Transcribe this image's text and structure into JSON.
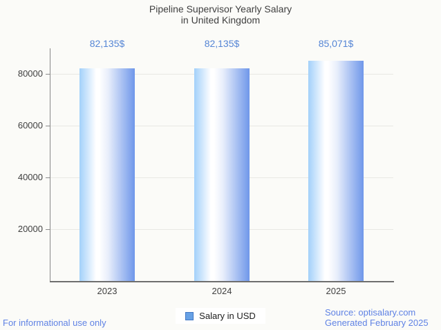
{
  "background": "#fbfbf8",
  "title": {
    "line1": "Pipeline Supervisor Yearly Salary",
    "line2": "in United Kingdom",
    "color": "#3f3f3f"
  },
  "legend": {
    "label": "Salary in USD",
    "swatch_fill": "#67a1e5",
    "swatch_border": "#4076c4"
  },
  "footer": {
    "left": "For informational use only",
    "right_line1": "Source: optisalary.com",
    "right_line2": "Generated February 2025",
    "color": "#5f82e4"
  },
  "chart_data": {
    "type": "bar",
    "title": "Pipeline Supervisor Yearly Salary in United Kingdom",
    "categories": [
      "2023",
      "2024",
      "2025"
    ],
    "series": [
      {
        "name": "Salary in USD",
        "values": [
          82135,
          82135,
          85071
        ]
      }
    ],
    "value_labels": [
      "82,135$",
      "82,135$",
      "85,071$"
    ],
    "xlabel": "",
    "ylabel": "",
    "ylim": [
      0,
      90000
    ],
    "yticks": [
      20000,
      40000,
      60000,
      80000
    ],
    "grid": true,
    "legend_position": "bottom",
    "value_label_color": "#5585d5",
    "bar_gradient": [
      "#a2d0fa",
      "#ffffff",
      "#e8eefb",
      "#6f97ea"
    ],
    "grid_color": "#e8e8e4",
    "axis_color": "#6e6e6e",
    "tick_label_color": "#3f3f3f"
  }
}
